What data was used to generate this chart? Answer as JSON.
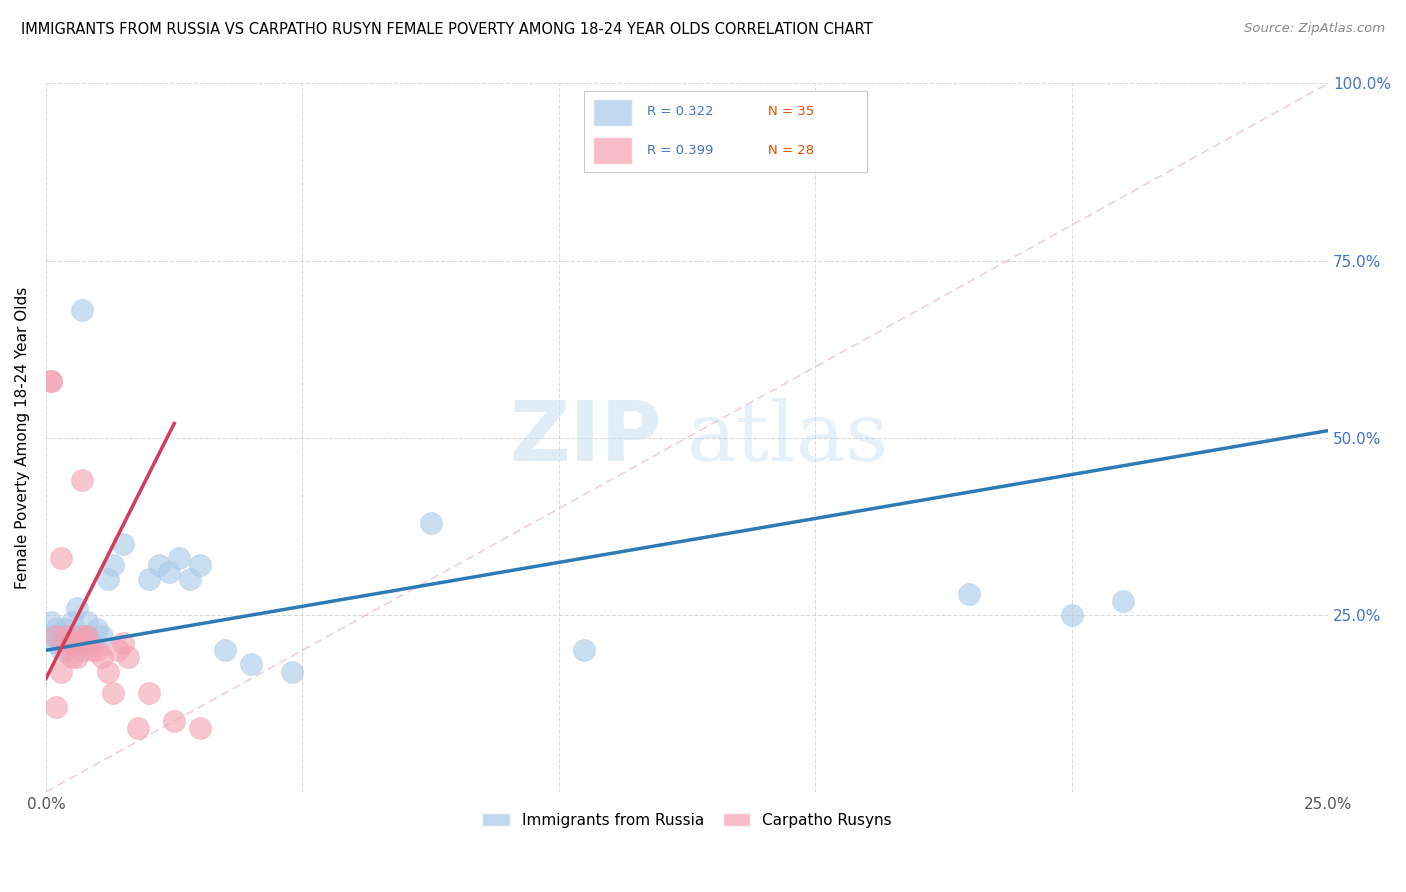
{
  "title": "IMMIGRANTS FROM RUSSIA VS CARPATHO RUSYN FEMALE POVERTY AMONG 18-24 YEAR OLDS CORRELATION CHART",
  "source": "Source: ZipAtlas.com",
  "ylabel": "Female Poverty Among 18-24 Year Olds",
  "xlim": [
    0.0,
    0.25
  ],
  "ylim": [
    0.0,
    1.0
  ],
  "xticks": [
    0.0,
    0.05,
    0.1,
    0.15,
    0.2,
    0.25
  ],
  "yticks": [
    0.0,
    0.25,
    0.5,
    0.75,
    1.0
  ],
  "xtick_labels": [
    "0.0%",
    "",
    "",
    "",
    "",
    "25.0%"
  ],
  "ytick_labels_right": [
    "",
    "25.0%",
    "50.0%",
    "75.0%",
    "100.0%"
  ],
  "legend1_R": "0.322",
  "legend1_N": "35",
  "legend2_R": "0.399",
  "legend2_N": "28",
  "legend1_label": "Immigrants from Russia",
  "legend2_label": "Carpatho Rusyns",
  "blue_color": "#a8c8e8",
  "pink_color": "#f4a0b0",
  "trend_blue": "#2c7bb6",
  "trend_pink": "#d63b5a",
  "watermark_zip": "ZIP",
  "watermark_atlas": "atlas",
  "blue_scatter_x": [
    0.001,
    0.001,
    0.002,
    0.002,
    0.003,
    0.003,
    0.004,
    0.004,
    0.005,
    0.005,
    0.006,
    0.007,
    0.007,
    0.008,
    0.008,
    0.009,
    0.01,
    0.011,
    0.012,
    0.013,
    0.015,
    0.02,
    0.022,
    0.024,
    0.026,
    0.028,
    0.03,
    0.035,
    0.04,
    0.048,
    0.075,
    0.105,
    0.18,
    0.2,
    0.21
  ],
  "blue_scatter_y": [
    0.22,
    0.24,
    0.21,
    0.23,
    0.2,
    0.22,
    0.21,
    0.23,
    0.22,
    0.24,
    0.26,
    0.68,
    0.2,
    0.22,
    0.24,
    0.21,
    0.23,
    0.22,
    0.3,
    0.32,
    0.35,
    0.3,
    0.32,
    0.31,
    0.33,
    0.3,
    0.32,
    0.2,
    0.18,
    0.17,
    0.38,
    0.2,
    0.28,
    0.25,
    0.27
  ],
  "pink_scatter_x": [
    0.001,
    0.001,
    0.002,
    0.002,
    0.003,
    0.003,
    0.004,
    0.004,
    0.005,
    0.005,
    0.006,
    0.006,
    0.007,
    0.007,
    0.008,
    0.008,
    0.009,
    0.01,
    0.011,
    0.012,
    0.013,
    0.014,
    0.015,
    0.016,
    0.018,
    0.02,
    0.025,
    0.03
  ],
  "pink_scatter_y": [
    0.58,
    0.58,
    0.12,
    0.22,
    0.17,
    0.33,
    0.22,
    0.2,
    0.19,
    0.21,
    0.19,
    0.21,
    0.22,
    0.44,
    0.21,
    0.22,
    0.2,
    0.2,
    0.19,
    0.17,
    0.14,
    0.2,
    0.21,
    0.19,
    0.09,
    0.14,
    0.1,
    0.09
  ],
  "blue_trend_x0": 0.0,
  "blue_trend_y0": 0.2,
  "blue_trend_x1": 0.25,
  "blue_trend_y1": 0.51,
  "pink_trend_x0": 0.0,
  "pink_trend_y0": 0.16,
  "pink_trend_x1": 0.025,
  "pink_trend_y1": 0.52,
  "ref_line_color": "#e8a0b0",
  "ref_line_alpha": 0.6
}
